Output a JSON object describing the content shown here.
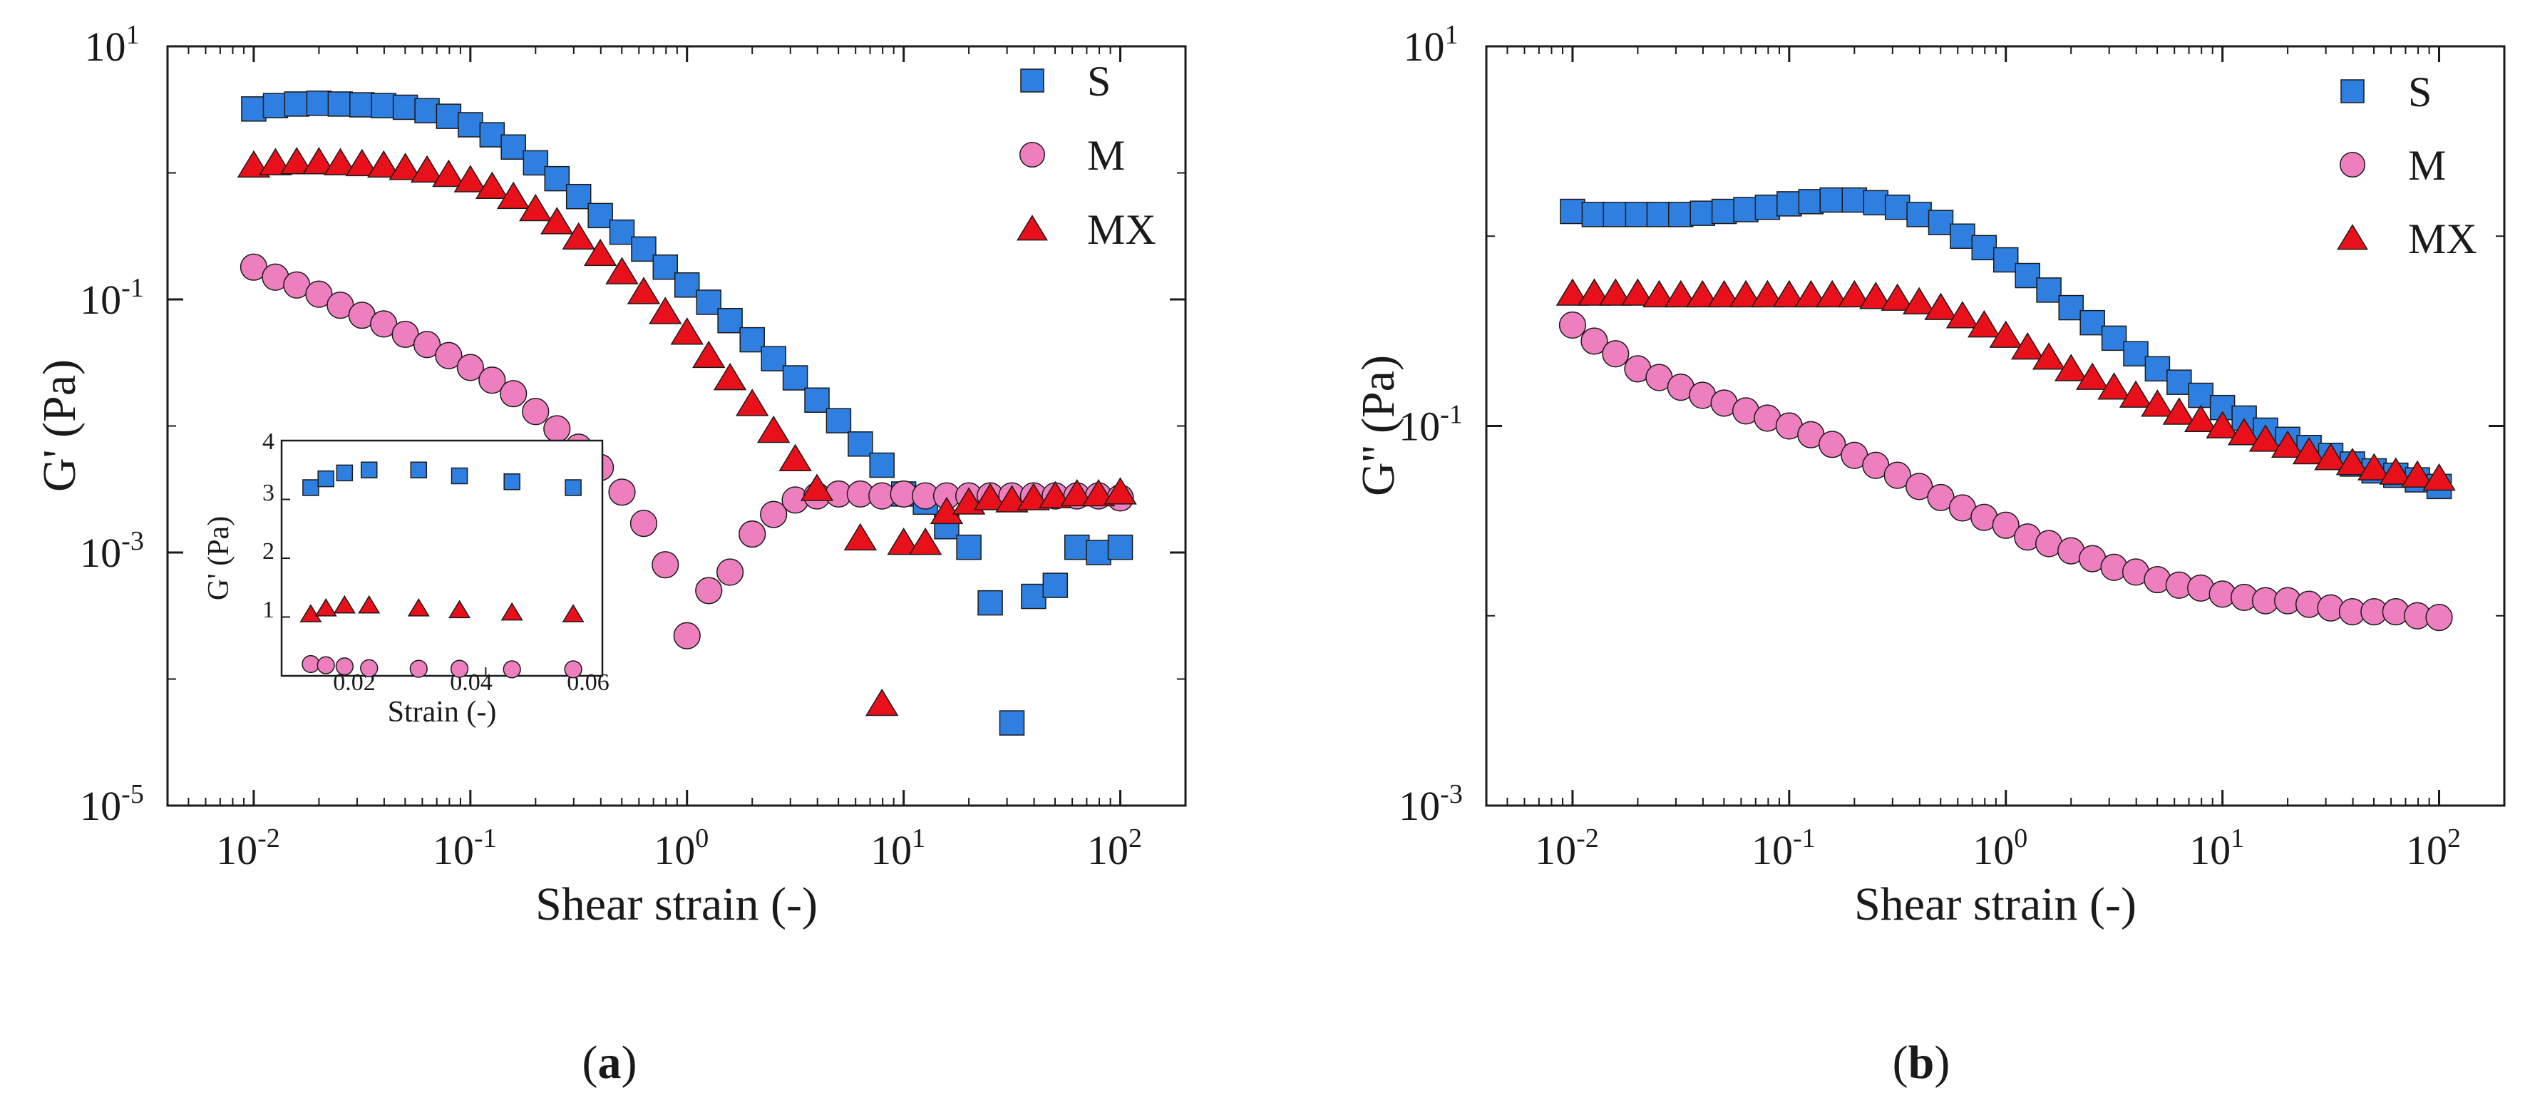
{
  "chart_data": [
    {
      "type": "scatter",
      "panel": "a",
      "caption_letter": "a",
      "caption_open": "(",
      "caption_close": ")",
      "xlabel": "Shear strain (-)",
      "ylabel": "G' (Pa)",
      "xscale": "log",
      "yscale": "log",
      "xlim": [
        0.004,
        200
      ],
      "ylim": [
        1e-05,
        10
      ],
      "xticks": [
        {
          "value": 0.01,
          "base": "10",
          "exp": "-2"
        },
        {
          "value": 0.1,
          "base": "10",
          "exp": "-1"
        },
        {
          "value": 1,
          "base": "10",
          "exp": "0"
        },
        {
          "value": 10,
          "base": "10",
          "exp": "1"
        },
        {
          "value": 100,
          "base": "10",
          "exp": "2"
        }
      ],
      "yticks": [
        {
          "value": 1e-05,
          "base": "10",
          "exp": "-5"
        },
        {
          "value": 0.001,
          "base": "10",
          "exp": "-3"
        },
        {
          "value": 0.1,
          "base": "10",
          "exp": "-1"
        },
        {
          "value": 10,
          "base": "10",
          "exp": "1"
        }
      ],
      "legend": {
        "position": "top-right"
      },
      "series": [
        {
          "name": "S",
          "marker": "square",
          "color": "#2f7fe0",
          "x": [
            0.01,
            0.0126,
            0.0158,
            0.02,
            0.0251,
            0.0316,
            0.0398,
            0.0501,
            0.0631,
            0.0794,
            0.1,
            0.126,
            0.158,
            0.2,
            0.251,
            0.316,
            0.398,
            0.501,
            0.631,
            0.794,
            1.0,
            1.26,
            1.58,
            2.0,
            2.51,
            3.16,
            3.98,
            5.01,
            6.31,
            7.94,
            10.0,
            12.6,
            15.8,
            20.0,
            25.1,
            31.6,
            39.8,
            50.1,
            63.1,
            79.4,
            100
          ],
          "y": [
            3.2,
            3.4,
            3.5,
            3.55,
            3.5,
            3.45,
            3.4,
            3.3,
            3.1,
            2.8,
            2.4,
            2.0,
            1.6,
            1.2,
            0.9,
            0.65,
            0.46,
            0.34,
            0.25,
            0.18,
            0.13,
            0.095,
            0.068,
            0.048,
            0.034,
            0.024,
            0.016,
            0.011,
            0.0072,
            0.0049,
            0.0029,
            0.0025,
            0.0016,
            0.0011,
            0.0004,
            4.5e-05,
            0.00045,
            0.00055,
            0.0011,
            0.001,
            0.0011
          ]
        },
        {
          "name": "M",
          "marker": "circle",
          "color": "#ee7fbf",
          "x": [
            0.01,
            0.0126,
            0.0158,
            0.02,
            0.0251,
            0.0316,
            0.0398,
            0.0501,
            0.0631,
            0.0794,
            0.1,
            0.126,
            0.158,
            0.2,
            0.251,
            0.316,
            0.398,
            0.501,
            0.631,
            0.794,
            1.0,
            1.26,
            1.58,
            2.0,
            2.51,
            3.16,
            3.98,
            5.01,
            6.31,
            7.94,
            10.0,
            12.6,
            15.8,
            20.0,
            25.1,
            31.6,
            39.8,
            50.1,
            63.1,
            79.4,
            100
          ],
          "y": [
            0.18,
            0.15,
            0.13,
            0.11,
            0.09,
            0.075,
            0.064,
            0.053,
            0.044,
            0.036,
            0.029,
            0.023,
            0.018,
            0.013,
            0.0095,
            0.0068,
            0.0047,
            0.003,
            0.0017,
            0.0008,
            0.00022,
            0.0005,
            0.0007,
            0.0014,
            0.002,
            0.0026,
            0.0028,
            0.0029,
            0.0029,
            0.0028,
            0.0029,
            0.0028,
            0.0028,
            0.0028,
            0.0028,
            0.0028,
            0.0028,
            0.0028,
            0.0028,
            0.0028,
            0.0027
          ]
        },
        {
          "name": "MX",
          "marker": "triangle",
          "color": "#e8101a",
          "x": [
            0.01,
            0.0126,
            0.0158,
            0.02,
            0.0251,
            0.0316,
            0.0398,
            0.0501,
            0.0631,
            0.0794,
            0.1,
            0.126,
            0.158,
            0.2,
            0.251,
            0.316,
            0.398,
            0.501,
            0.631,
            0.794,
            1.0,
            1.26,
            1.58,
            2.0,
            2.51,
            3.16,
            3.98,
            6.31,
            7.94,
            10.0,
            12.6,
            15.8,
            20.0,
            25.1,
            31.6,
            39.8,
            50.1,
            63.1,
            79.4,
            100
          ],
          "y": [
            1.15,
            1.2,
            1.22,
            1.22,
            1.2,
            1.18,
            1.15,
            1.1,
            1.05,
            0.97,
            0.88,
            0.78,
            0.65,
            0.52,
            0.41,
            0.31,
            0.23,
            0.165,
            0.115,
            0.08,
            0.055,
            0.036,
            0.024,
            0.015,
            0.0092,
            0.0055,
            0.0032,
            0.0013,
            6.4e-05,
            0.0012,
            0.0012,
            0.0021,
            0.0025,
            0.0027,
            0.0026,
            0.0027,
            0.0028,
            0.0029,
            0.0029,
            0.003
          ]
        }
      ],
      "inset": {
        "xlabel": "Strain (-)",
        "ylabel": "G' (Pa)",
        "xlim": [
          0.005,
          0.06
        ],
        "ylim": [
          0,
          4
        ],
        "xticks": [
          "0.02",
          "0.04",
          "0.06"
        ],
        "yticks": [
          "1",
          "2",
          "3",
          "4"
        ],
        "series": [
          {
            "name": "S",
            "marker": "square",
            "color": "#2f7fe0",
            "x": [
              0.01,
              0.0126,
              0.0158,
              0.02,
              0.0285,
              0.0355,
              0.0445,
              0.055
            ],
            "y": [
              3.2,
              3.35,
              3.45,
              3.5,
              3.5,
              3.4,
              3.3,
              3.2
            ]
          },
          {
            "name": "MX",
            "marker": "triangle",
            "color": "#e8101a",
            "x": [
              0.01,
              0.0126,
              0.0158,
              0.02,
              0.0285,
              0.0355,
              0.0445,
              0.055
            ],
            "y": [
              1.05,
              1.15,
              1.2,
              1.2,
              1.15,
              1.12,
              1.08,
              1.05
            ]
          },
          {
            "name": "M",
            "marker": "circle",
            "color": "#ee7fbf",
            "x": [
              0.01,
              0.0126,
              0.0158,
              0.02,
              0.0285,
              0.0355,
              0.0445,
              0.055
            ],
            "y": [
              0.2,
              0.18,
              0.16,
              0.13,
              0.12,
              0.12,
              0.11,
              0.11
            ]
          }
        ]
      }
    },
    {
      "type": "scatter",
      "panel": "b",
      "caption_letter": "b",
      "caption_open": "(",
      "caption_close": ")",
      "xlabel": "Shear strain (-)",
      "ylabel": "G'' (Pa)",
      "xscale": "log",
      "yscale": "log",
      "xlim": [
        0.004,
        200
      ],
      "ylim": [
        0.001,
        10
      ],
      "xticks": [
        {
          "value": 0.01,
          "base": "10",
          "exp": "-2"
        },
        {
          "value": 0.1,
          "base": "10",
          "exp": "-1"
        },
        {
          "value": 1,
          "base": "10",
          "exp": "0"
        },
        {
          "value": 10,
          "base": "10",
          "exp": "1"
        },
        {
          "value": 100,
          "base": "10",
          "exp": "2"
        }
      ],
      "yticks": [
        {
          "value": 0.001,
          "base": "10",
          "exp": "-3"
        },
        {
          "value": 0.1,
          "base": "10",
          "exp": "-1"
        },
        {
          "value": 10,
          "base": "10",
          "exp": "1"
        }
      ],
      "legend": {
        "position": "top-right"
      },
      "series": [
        {
          "name": "S",
          "marker": "square",
          "color": "#2f7fe0",
          "x": [
            0.01,
            0.0126,
            0.0158,
            0.02,
            0.0251,
            0.0316,
            0.0398,
            0.0501,
            0.0631,
            0.0794,
            0.1,
            0.126,
            0.158,
            0.2,
            0.251,
            0.316,
            0.398,
            0.501,
            0.631,
            0.794,
            1.0,
            1.26,
            1.58,
            2.0,
            2.51,
            3.16,
            3.98,
            5.01,
            6.31,
            7.94,
            10.0,
            12.6,
            15.8,
            20.0,
            25.1,
            31.6,
            39.8,
            50.1,
            63.1,
            79.4,
            100
          ],
          "y": [
            1.35,
            1.3,
            1.3,
            1.3,
            1.3,
            1.3,
            1.32,
            1.35,
            1.38,
            1.42,
            1.48,
            1.52,
            1.55,
            1.55,
            1.5,
            1.42,
            1.3,
            1.18,
            1.0,
            0.87,
            0.75,
            0.62,
            0.52,
            0.42,
            0.35,
            0.29,
            0.24,
            0.2,
            0.17,
            0.145,
            0.125,
            0.11,
            0.095,
            0.085,
            0.077,
            0.07,
            0.063,
            0.058,
            0.055,
            0.052,
            0.048
          ]
        },
        {
          "name": "M",
          "marker": "circle",
          "color": "#ee7fbf",
          "x": [
            0.01,
            0.0126,
            0.0158,
            0.02,
            0.0251,
            0.0316,
            0.0398,
            0.0501,
            0.0631,
            0.0794,
            0.1,
            0.126,
            0.158,
            0.2,
            0.251,
            0.316,
            0.398,
            0.501,
            0.631,
            0.794,
            1.0,
            1.26,
            1.58,
            2.0,
            2.51,
            3.16,
            3.98,
            5.01,
            6.31,
            7.94,
            10.0,
            12.6,
            15.8,
            20.0,
            25.1,
            31.6,
            39.8,
            50.1,
            63.1,
            79.4,
            100
          ],
          "y": [
            0.34,
            0.28,
            0.24,
            0.2,
            0.18,
            0.16,
            0.145,
            0.132,
            0.12,
            0.11,
            0.1,
            0.09,
            0.08,
            0.07,
            0.062,
            0.055,
            0.048,
            0.042,
            0.037,
            0.033,
            0.03,
            0.026,
            0.024,
            0.022,
            0.02,
            0.018,
            0.017,
            0.0155,
            0.0145,
            0.014,
            0.013,
            0.0125,
            0.012,
            0.012,
            0.0115,
            0.011,
            0.0105,
            0.0105,
            0.0105,
            0.01,
            0.0098
          ]
        },
        {
          "name": "MX",
          "marker": "triangle",
          "color": "#e8101a",
          "x": [
            0.01,
            0.0126,
            0.0158,
            0.02,
            0.0251,
            0.0316,
            0.0398,
            0.0501,
            0.0631,
            0.0794,
            0.1,
            0.126,
            0.158,
            0.2,
            0.251,
            0.316,
            0.398,
            0.501,
            0.631,
            0.794,
            1.0,
            1.26,
            1.58,
            2.0,
            2.51,
            3.16,
            3.98,
            5.01,
            6.31,
            7.94,
            10.0,
            12.6,
            15.8,
            20.0,
            25.1,
            31.6,
            39.8,
            50.1,
            63.1,
            79.4,
            100
          ],
          "y": [
            0.5,
            0.5,
            0.5,
            0.5,
            0.49,
            0.49,
            0.49,
            0.49,
            0.49,
            0.49,
            0.49,
            0.49,
            0.49,
            0.49,
            0.48,
            0.47,
            0.45,
            0.42,
            0.38,
            0.34,
            0.3,
            0.26,
            0.23,
            0.2,
            0.18,
            0.16,
            0.145,
            0.13,
            0.118,
            0.108,
            0.1,
            0.092,
            0.085,
            0.079,
            0.073,
            0.068,
            0.064,
            0.06,
            0.057,
            0.055,
            0.053
          ]
        }
      ]
    }
  ]
}
